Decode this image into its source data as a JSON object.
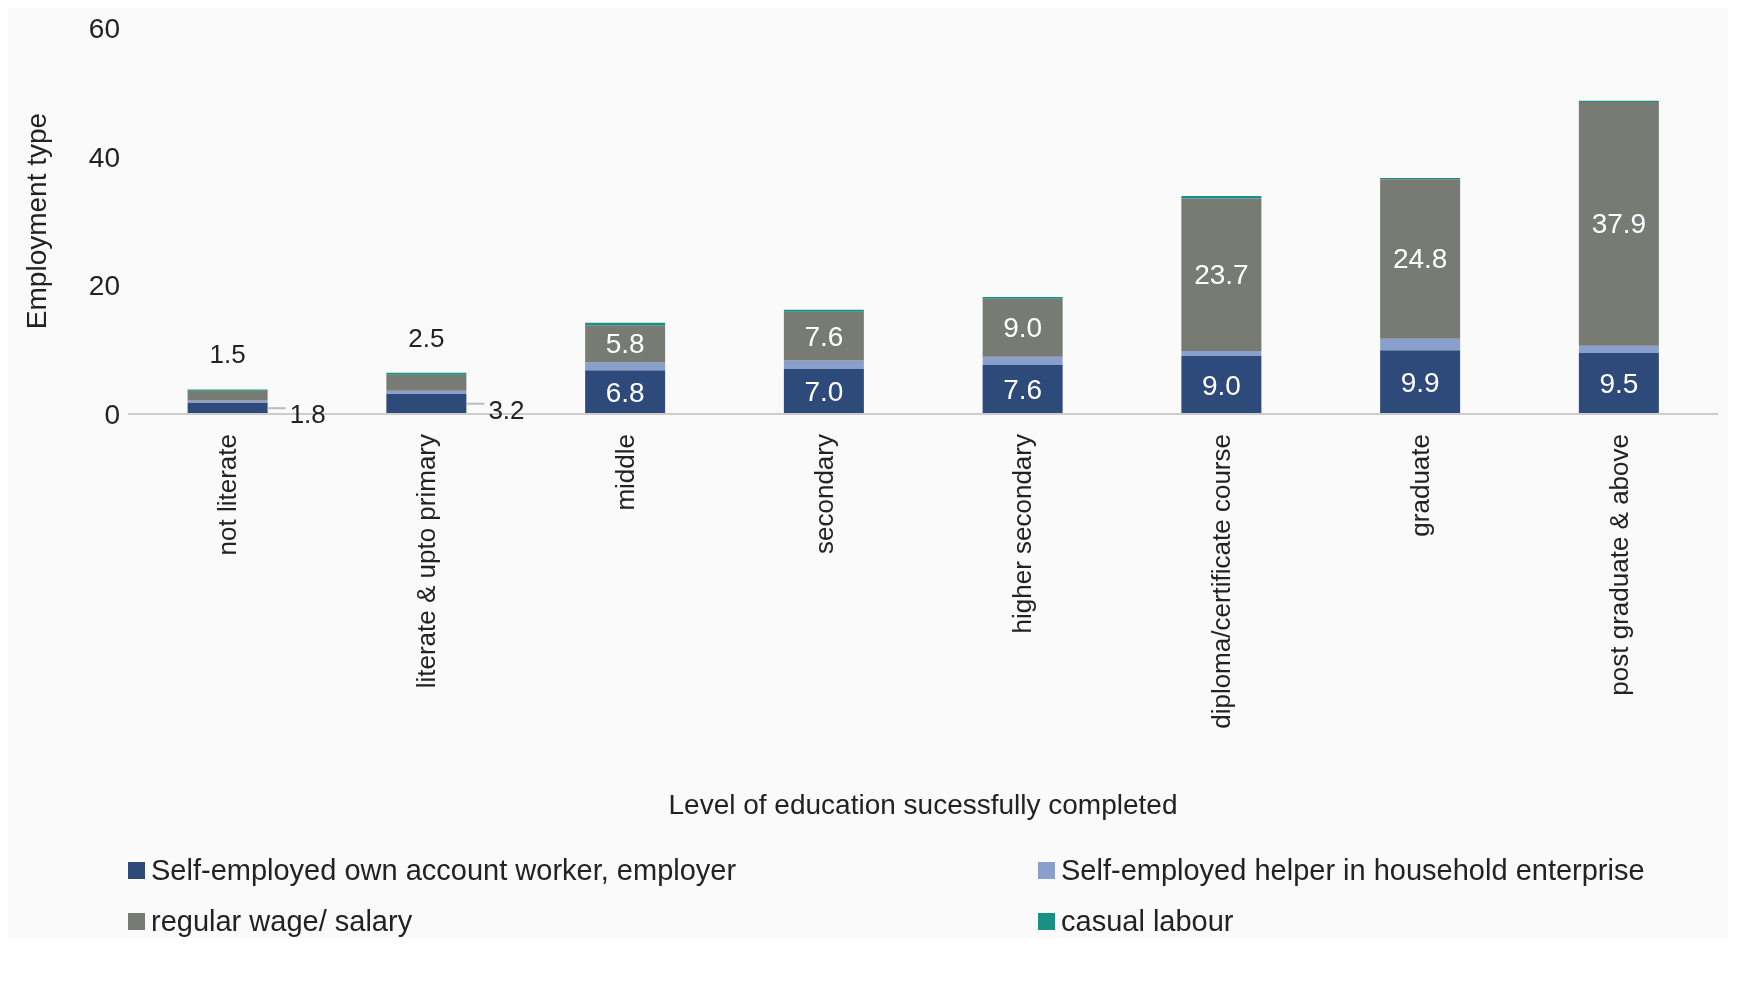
{
  "chart_data": {
    "type": "bar",
    "stacked": true,
    "xlabel": "Level of education sucessfully completed",
    "ylabel": "Employment type",
    "categories": [
      "not literate",
      "literate & upto primary",
      "middle",
      "secondary",
      "higher secondary",
      "diploma/certificate course",
      "graduate",
      "post graduate & above"
    ],
    "series": [
      {
        "name": "Self-employed own account worker, employer",
        "color": "#2e4a7a",
        "values": [
          1.8,
          3.2,
          6.8,
          7.0,
          7.6,
          9.0,
          9.9,
          9.5
        ],
        "value_labels": [
          "1.8",
          "3.2",
          "6.8",
          "7.0",
          "7.6",
          "9.0",
          "9.9",
          "9.5"
        ]
      },
      {
        "name": "Self-employed helper in household enterprise",
        "color": "#8aa0cc",
        "values": [
          0.3,
          0.4,
          1.2,
          1.3,
          1.3,
          0.8,
          1.8,
          1.1
        ]
      },
      {
        "name": "regular wage/ salary",
        "color": "#787a74",
        "values": [
          1.5,
          2.5,
          5.8,
          7.6,
          9.0,
          23.7,
          24.8,
          37.9
        ],
        "value_labels": [
          "1.5",
          "2.5",
          "5.8",
          "7.6",
          "9.0",
          "23.7",
          "24.8",
          "37.9"
        ]
      },
      {
        "name": "casual labour",
        "color": "#1a8f85",
        "values": [
          0.2,
          0.3,
          0.4,
          0.3,
          0.3,
          0.4,
          0.2,
          0.2
        ]
      }
    ],
    "ylim": [
      0,
      60
    ],
    "yticks": [
      0,
      20,
      40,
      60
    ],
    "grid": false,
    "legend": "bottom"
  }
}
